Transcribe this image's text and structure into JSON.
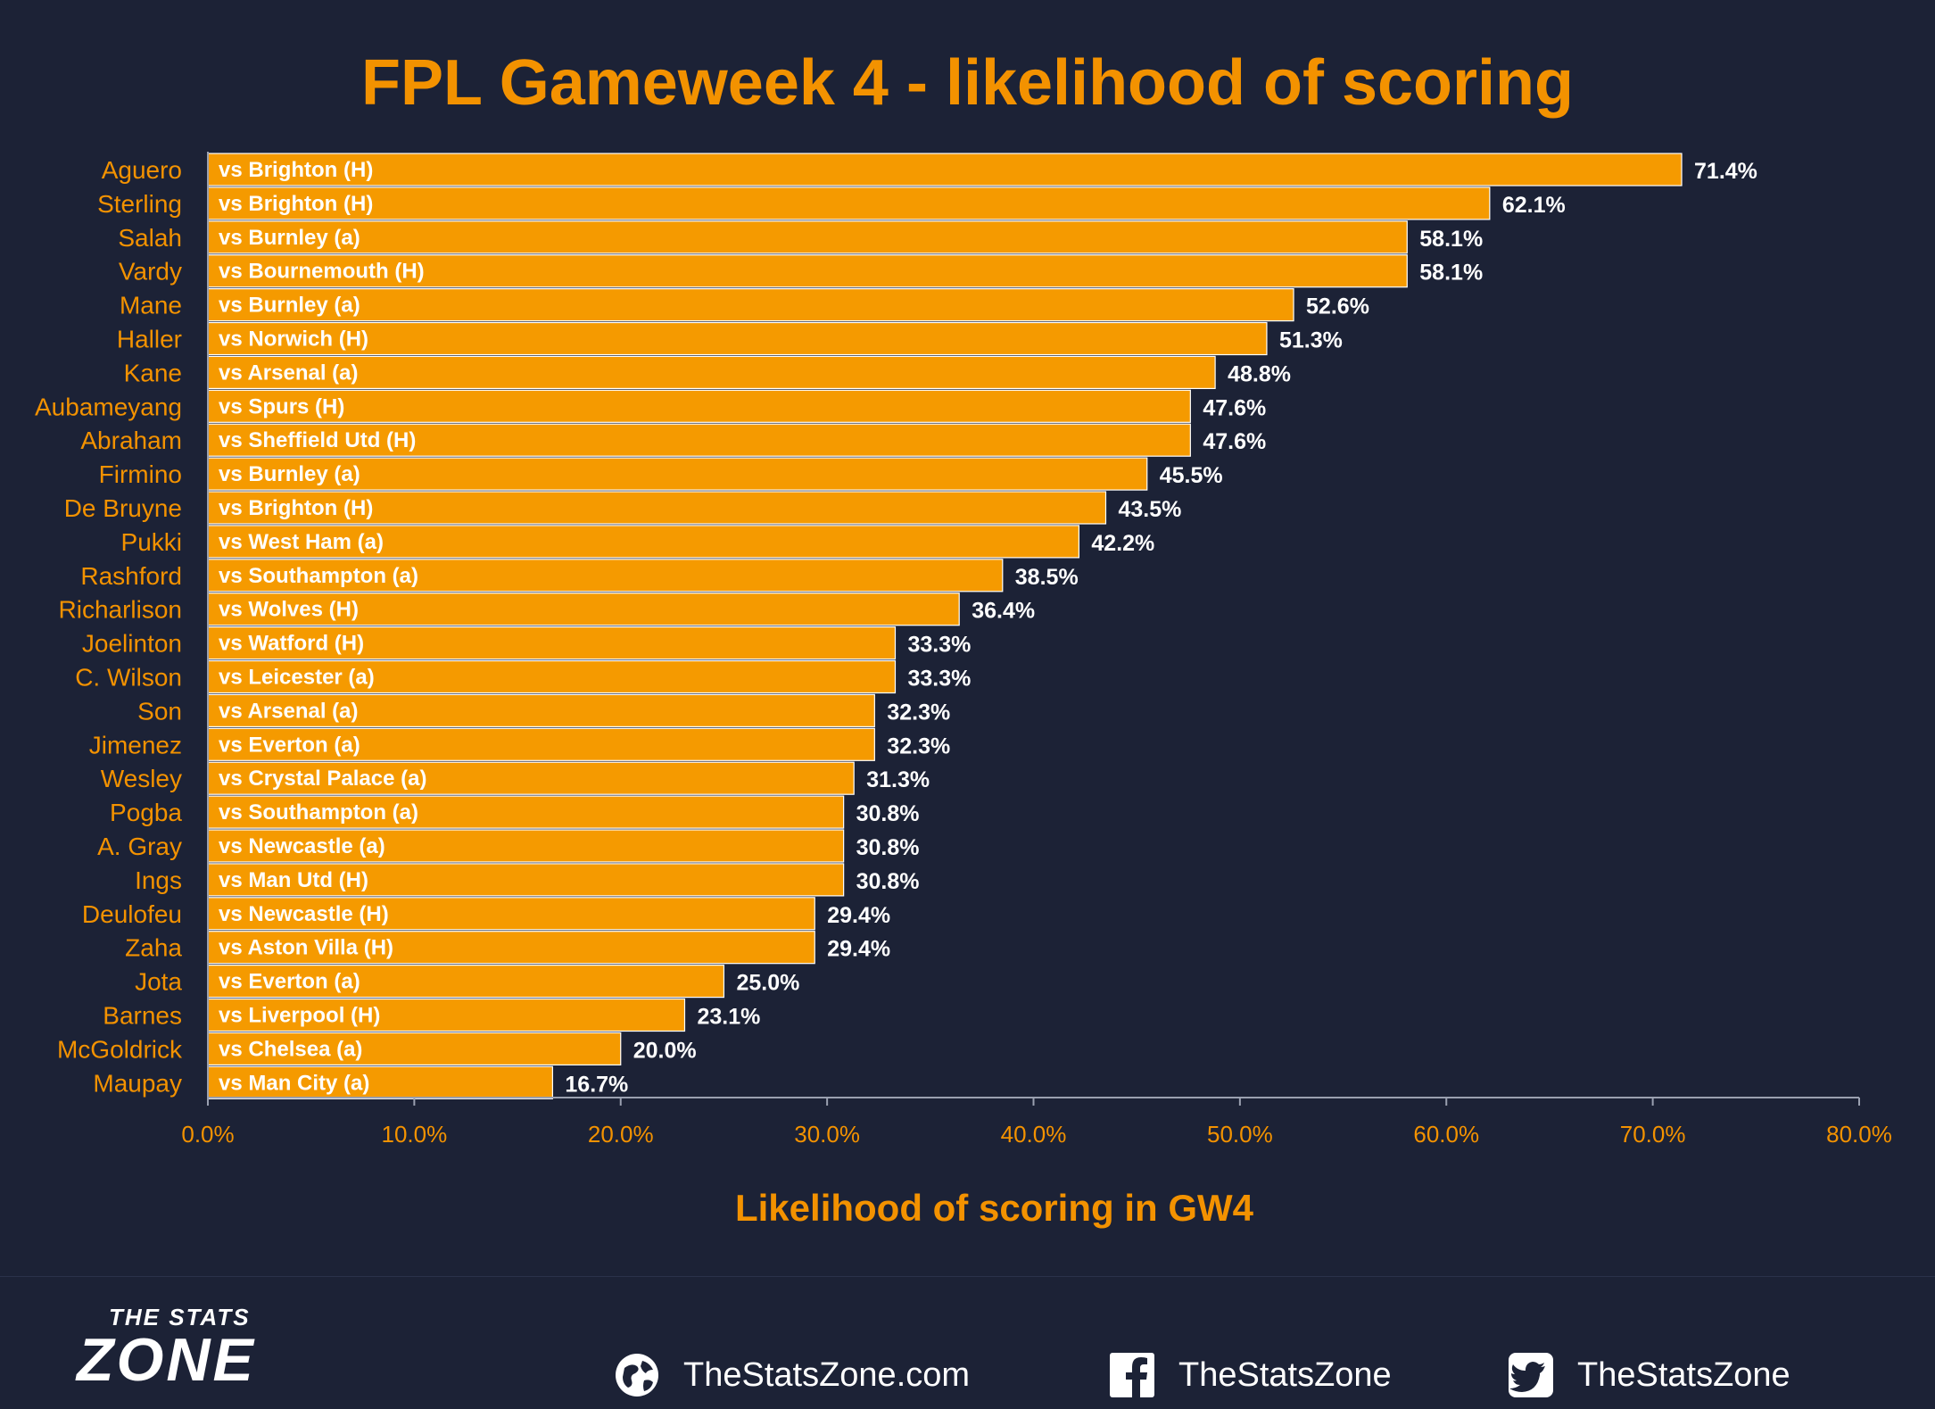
{
  "chart_data": {
    "type": "bar",
    "orientation": "horizontal",
    "title": "FPL Gameweek 4 - likelihood of scoring",
    "xlabel": "Likelihood of scoring in GW4",
    "xlim": [
      0,
      80
    ],
    "x_ticks": [
      "0.0%",
      "10.0%",
      "20.0%",
      "30.0%",
      "40.0%",
      "50.0%",
      "60.0%",
      "70.0%",
      "80.0%"
    ],
    "grid": false,
    "bar_color": "#f59a00",
    "categories": [
      "Aguero",
      "Sterling",
      "Salah",
      "Vardy",
      "Mane",
      "Haller",
      "Kane",
      "Aubameyang",
      "Abraham",
      "Firmino",
      "De Bruyne",
      "Pukki",
      "Rashford",
      "Richarlison",
      "Joelinton",
      "C. Wilson",
      "Son",
      "Jimenez",
      "Wesley",
      "Pogba",
      "A. Gray",
      "Ings",
      "Deulofeu",
      "Zaha",
      "Jota",
      "Barnes",
      "McGoldrick",
      "Maupay"
    ],
    "fixtures": [
      "vs Brighton (H)",
      "vs Brighton (H)",
      "vs Burnley (a)",
      "vs Bournemouth (H)",
      "vs Burnley (a)",
      "vs Norwich (H)",
      "vs Arsenal (a)",
      "vs Spurs (H)",
      "vs Sheffield Utd (H)",
      "vs Burnley (a)",
      "vs Brighton (H)",
      "vs West Ham (a)",
      "vs Southampton (a)",
      "vs Wolves (H)",
      "vs Watford (H)",
      "vs Leicester (a)",
      "vs Arsenal (a)",
      "vs Everton (a)",
      "vs Crystal Palace (a)",
      "vs Southampton (a)",
      "vs Newcastle (a)",
      "vs Man Utd (H)",
      "vs Newcastle (H)",
      "vs Aston Villa (H)",
      "vs Everton (a)",
      "vs Liverpool (H)",
      "vs Chelsea (a)",
      "vs Man City (a)"
    ],
    "values": [
      71.4,
      62.1,
      58.1,
      58.1,
      52.6,
      51.3,
      48.8,
      47.6,
      47.6,
      45.5,
      43.5,
      42.2,
      38.5,
      36.4,
      33.3,
      33.3,
      32.3,
      32.3,
      31.3,
      30.8,
      30.8,
      30.8,
      29.4,
      29.4,
      25.0,
      23.1,
      20.0,
      16.7
    ],
    "value_labels": [
      "71.4%",
      "62.1%",
      "58.1%",
      "58.1%",
      "52.6%",
      "51.3%",
      "48.8%",
      "47.6%",
      "47.6%",
      "45.5%",
      "43.5%",
      "42.2%",
      "38.5%",
      "36.4%",
      "33.3%",
      "33.3%",
      "32.3%",
      "32.3%",
      "31.3%",
      "30.8%",
      "30.8%",
      "30.8%",
      "29.4%",
      "29.4%",
      "25.0%",
      "23.1%",
      "20.0%",
      "16.7%"
    ]
  },
  "footer": {
    "logo_top": "THE STATS",
    "logo_main": "ZONE",
    "website": "TheStatsZone.com",
    "facebook": "TheStatsZone",
    "twitter": "TheStatsZone",
    "icons": {
      "website": "globe-icon",
      "facebook": "facebook-icon",
      "twitter": "twitter-icon"
    }
  }
}
